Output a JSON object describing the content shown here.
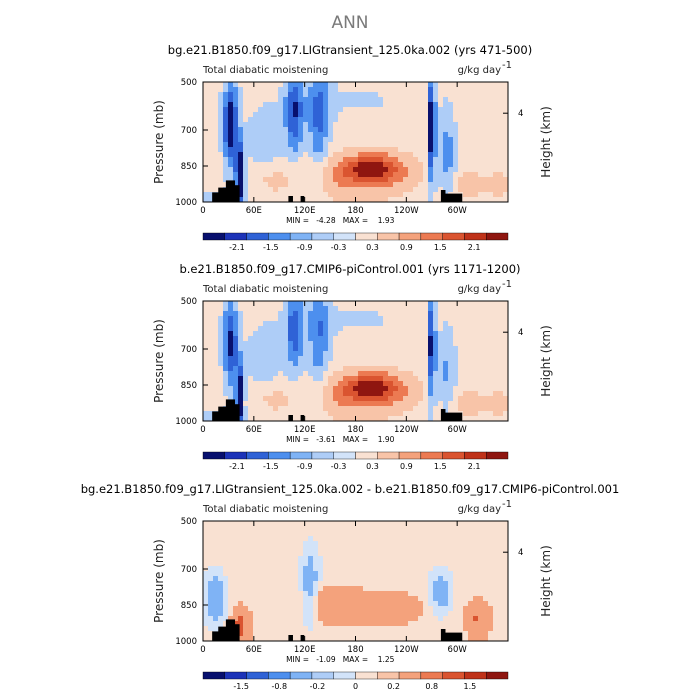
{
  "figure": {
    "main_title": "ANN",
    "colors": {
      "scale": [
        "#08106e",
        "#1c33b8",
        "#2f62d6",
        "#4d8fee",
        "#7fb3f5",
        "#aecdf7",
        "#d2e3f9",
        "#f9e1d2",
        "#f8c4a8",
        "#f4a27c",
        "#ec7a52",
        "#da5430",
        "#bf3219",
        "#8f1610"
      ],
      "terrain": "#000000",
      "line": "#000000"
    },
    "panels": [
      {
        "title": "bg.e21.B1850.f09_g17.LIGtransient_125.0ka.002 (yrs 471-500)",
        "left_string": "Total diabatic moistening",
        "right_string": "g/kg day",
        "right_sup": "-1",
        "min_max": "MIN =   -4.28   MAX =    1.93",
        "colorbar_labels": [
          "-2.1",
          "-1.5",
          "-0.9",
          "-0.3",
          "0.3",
          "0.9",
          "1.5",
          "2.1"
        ],
        "kind": "full"
      },
      {
        "title": "b.e21.B1850.f09_g17.CMIP6-piControl.001 (yrs 1171-1200)",
        "left_string": "Total diabatic moistening",
        "right_string": "g/kg day",
        "right_sup": "-1",
        "min_max": "MIN =   -3.61   MAX =    1.90",
        "colorbar_labels": [
          "-2.1",
          "-1.5",
          "-0.9",
          "-0.3",
          "0.3",
          "0.9",
          "1.5",
          "2.1"
        ],
        "kind": "full"
      },
      {
        "title": "bg.e21.B1850.f09_g17.LIGtransient_125.0ka.002 - b.e21.B1850.f09_g17.CMIP6-piControl.001",
        "left_string": "Total diabatic moistening",
        "right_string": "g/kg day",
        "right_sup": "-1",
        "min_max": "MIN =   -1.09   MAX =    1.25",
        "colorbar_labels": [
          "-1.5",
          "-0.8",
          "-0.2",
          "0",
          "0.2",
          "0.8",
          "1.5"
        ],
        "kind": "diff"
      }
    ]
  },
  "chart_data": [
    {
      "type": "heatmap",
      "title": "bg.e21.B1850.f09_g17.LIGtransient_125.0ka.002 (yrs 471-500)",
      "variable": "Total diabatic moistening",
      "units": "g/kg day-1",
      "xlabel": "",
      "ylabel": "Pressure (mb)",
      "ylabel_right": "Height (km)",
      "x_ticks": [
        "0",
        "60E",
        "120E",
        "180",
        "120W",
        "60W"
      ],
      "y_ticks": [
        "500",
        "700",
        "850",
        "1000"
      ],
      "y_ticks_right": [
        "4"
      ],
      "ylim": [
        1000,
        500
      ],
      "min": -4.28,
      "max": 1.93,
      "levels": [
        -2.1,
        -1.5,
        -0.9,
        -0.3,
        0.3,
        0.9,
        1.5,
        2.1
      ],
      "features": [
        "strong drying near 30-40E and 80-130E",
        "max moistening near 180-140W at 850 mb",
        "drying near 70-65W"
      ]
    },
    {
      "type": "heatmap",
      "title": "b.e21.B1850.f09_g17.CMIP6-piControl.001 (yrs 1171-1200)",
      "variable": "Total diabatic moistening",
      "units": "g/kg day-1",
      "xlabel": "",
      "ylabel": "Pressure (mb)",
      "ylabel_right": "Height (km)",
      "x_ticks": [
        "0",
        "60E",
        "120E",
        "180",
        "120W",
        "60W"
      ],
      "y_ticks": [
        "500",
        "700",
        "850",
        "1000"
      ],
      "y_ticks_right": [
        "4"
      ],
      "ylim": [
        1000,
        500
      ],
      "min": -3.61,
      "max": 1.9,
      "levels": [
        -2.1,
        -1.5,
        -0.9,
        -0.3,
        0.3,
        0.9,
        1.5,
        2.1
      ],
      "features": [
        "drying near 30-40E and 80-130E",
        "max moistening near 180-140W at 850 mb"
      ]
    },
    {
      "type": "heatmap",
      "title": "bg.e21.B1850.f09_g17.LIGtransient_125.0ka.002 - b.e21.B1850.f09_g17.CMIP6-piControl.001",
      "variable": "Total diabatic moistening",
      "units": "g/kg day-1",
      "xlabel": "",
      "ylabel": "Pressure (mb)",
      "ylabel_right": "Height (km)",
      "x_ticks": [
        "0",
        "60E",
        "120E",
        "180",
        "120W",
        "60W"
      ],
      "y_ticks": [
        "500",
        "700",
        "850",
        "1000"
      ],
      "y_ticks_right": [
        "4"
      ],
      "ylim": [
        1000,
        500
      ],
      "min": -1.09,
      "max": 1.25,
      "levels": [
        -1.5,
        -0.8,
        -0.2,
        0,
        0.2,
        0.8,
        1.5
      ],
      "features": [
        "positive anomalies near 30-40E low levels",
        "positive band 120E-180 at 850 mb",
        "negative anomalies near 0-20E and 100-120E"
      ]
    }
  ]
}
